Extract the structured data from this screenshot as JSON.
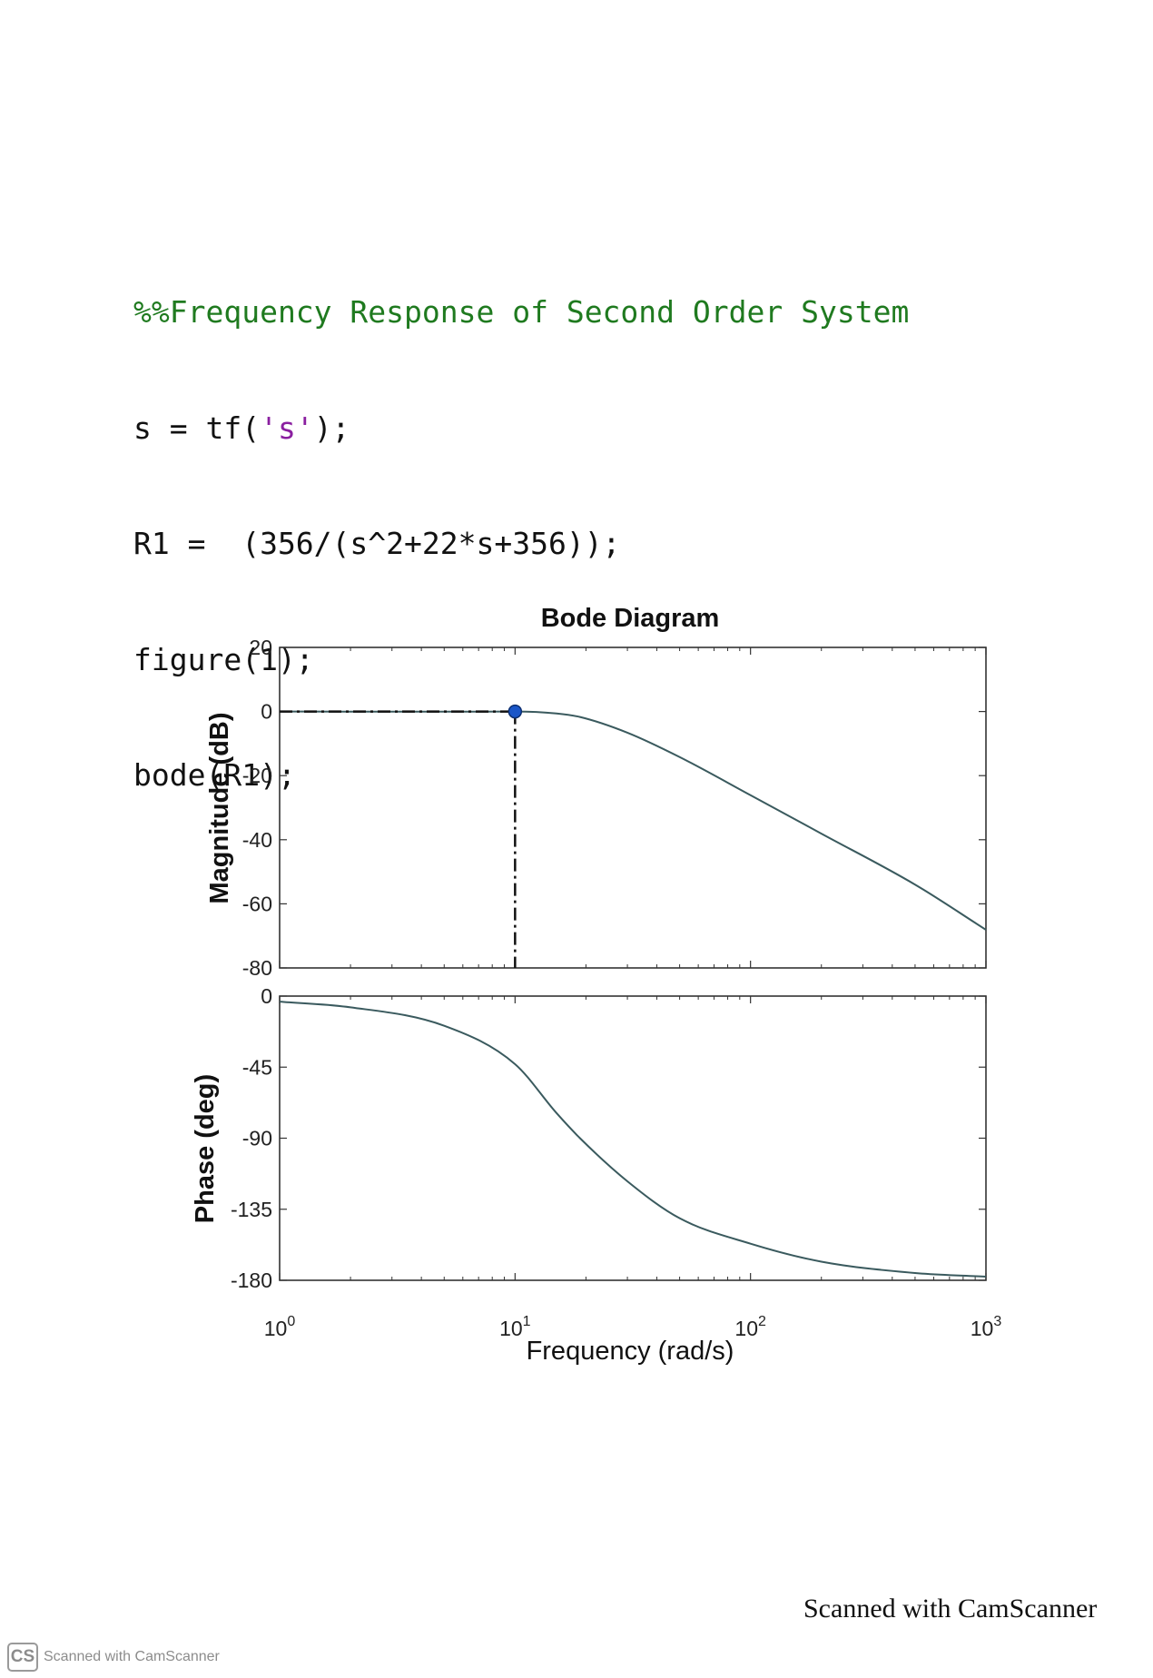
{
  "code": {
    "comment": "%%Frequency Response of Second Order System",
    "line1_pre": "s = tf(",
    "line1_str": "'s'",
    "line1_post": ");",
    "line2": "R1 =  (356/(s^2+22*s+356));",
    "line3": "figure(1);",
    "line4": "bode(R1);"
  },
  "footer": {
    "right_text": "Scanned with CamScanner",
    "logo_text": "CS",
    "left_text": "Scanned with CamScanner"
  },
  "chart_data": {
    "type": "line",
    "title": "Bode Diagram",
    "xlabel": "Frequency  (rad/s)",
    "xscale": "log",
    "xlim": [
      1,
      1000
    ],
    "xticks": [
      {
        "base": "10",
        "exp": "0",
        "value": 1
      },
      {
        "base": "10",
        "exp": "1",
        "value": 10
      },
      {
        "base": "10",
        "exp": "2",
        "value": 100
      },
      {
        "base": "10",
        "exp": "3",
        "value": 1000
      }
    ],
    "transfer_function": "356/(s^2+22*s+356)",
    "magnitude": {
      "ylabel": "Magnitude (dB)",
      "ylim": [
        -80,
        20
      ],
      "yticks": [
        "20",
        "0",
        "-20",
        "-40",
        "-60",
        "-80"
      ],
      "x": [
        1,
        2,
        5,
        10,
        15,
        18.87,
        30,
        50,
        100,
        200,
        500,
        1000
      ],
      "y": [
        0.0,
        -0.03,
        -0.05,
        0.0,
        -0.6,
        -1.7,
        -6.6,
        -14.2,
        -26.1,
        -38.1,
        -54.0,
        -68.1
      ]
    },
    "phase": {
      "ylabel": "Phase (deg)",
      "ylim": [
        -180,
        0
      ],
      "yticks": [
        "0",
        "-45",
        "-90",
        "-135",
        "-180"
      ],
      "x": [
        1,
        2,
        5,
        10,
        15,
        18.87,
        30,
        50,
        100,
        200,
        500,
        1000
      ],
      "y": [
        -3.5,
        -7.1,
        -18.8,
        -43.1,
        -74.1,
        -90.0,
        -117.3,
        -140.7,
        -156.8,
        -168.2,
        -175.4,
        -177.7
      ]
    },
    "marker": {
      "x": 10,
      "y": 0,
      "color": "#1a56c8"
    },
    "line_color": "#3a5a5e",
    "grid": false,
    "legend": "none"
  }
}
